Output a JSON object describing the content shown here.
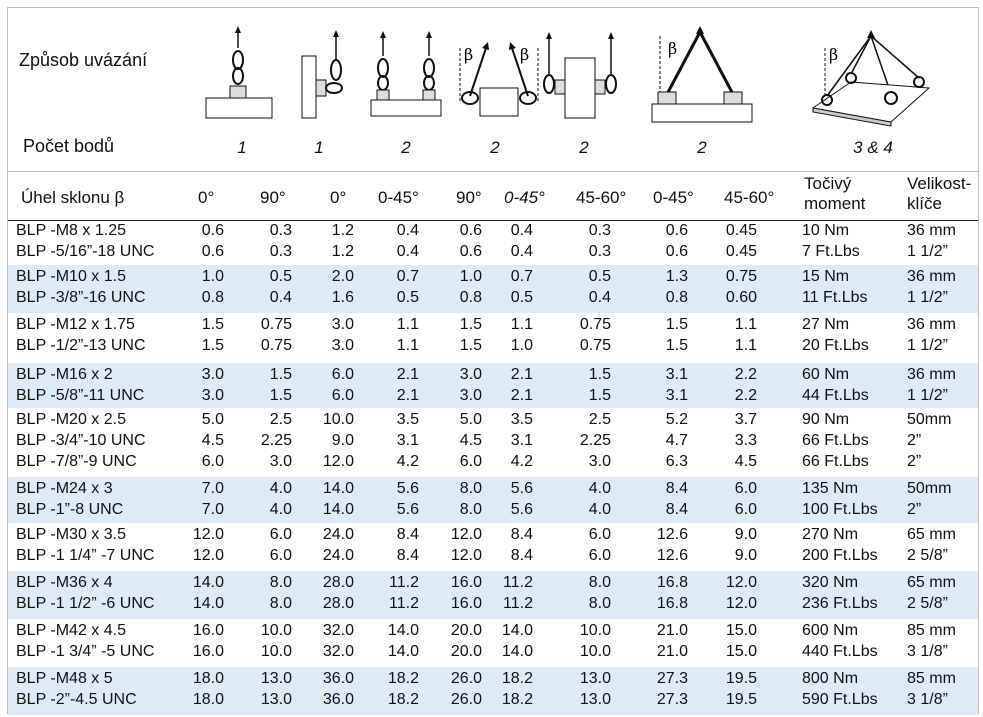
{
  "header": {
    "binding_label": "Způsob uvázání",
    "points_label": "Počet bodů",
    "beta_symbol": "β",
    "diagram_counts": [
      "1",
      "1",
      "2",
      "2",
      "2",
      "2",
      "3 & 4"
    ]
  },
  "angle_header": {
    "label": "Úhel sklonu β",
    "angles": [
      "0°",
      "90°",
      "0°",
      "0-45°",
      "90°",
      "0-45°",
      "45-60°",
      "0-45°",
      "45-60°"
    ],
    "torque_label": [
      "Točivý",
      "moment"
    ],
    "key_label": [
      "Velikost-",
      "klíče"
    ]
  },
  "groups": [
    {
      "shaded": false,
      "rows": [
        [
          "BLP -M8 x 1.25",
          "0.6",
          "0.3",
          "1.2",
          "0.4",
          "0.6",
          "0.4",
          "0.3",
          "0.6",
          "0.45",
          "10 Nm",
          "36 mm"
        ],
        [
          "BLP -5/16”-18 UNC",
          "0.6",
          "0.3",
          "1.2",
          "0.4",
          "0.6",
          "0.4",
          "0.3",
          "0.6",
          "0.45",
          "7 Ft.Lbs",
          "1 1/2”"
        ]
      ]
    },
    {
      "shaded": true,
      "rows": [
        [
          "BLP -M10 x 1.5",
          "1.0",
          "0.5",
          "2.0",
          "0.7",
          "1.0",
          "0.7",
          "0.5",
          "1.3",
          "0.75",
          "15 Nm",
          "36 mm"
        ],
        [
          "BLP -3/8”-16 UNC",
          "0.8",
          "0.4",
          "1.6",
          "0.5",
          "0.8",
          "0.5",
          "0.4",
          "0.8",
          "0.60",
          "11 Ft.Lbs",
          "1 1/2”"
        ]
      ]
    },
    {
      "shaded": false,
      "rows": [
        [
          "BLP -M12 x 1.75",
          "1.5",
          "0.75",
          "3.0",
          "1.1",
          "1.5",
          "1.1",
          "0.75",
          "1.5",
          "1.1",
          "27 Nm",
          "36 mm"
        ],
        [
          "BLP -1/2”-13 UNC",
          "1.5",
          "0.75",
          "3.0",
          "1.1",
          "1.5",
          "1.0",
          "0.75",
          "1.5",
          "1.1",
          "20 Ft.Lbs",
          "1 1/2”"
        ]
      ]
    },
    {
      "shaded": true,
      "rows": [
        [
          "BLP -M16 x 2",
          "3.0",
          "1.5",
          "6.0",
          "2.1",
          "3.0",
          "2.1",
          "1.5",
          "3.1",
          "2.2",
          "60 Nm",
          "36 mm"
        ],
        [
          "BLP -5/8”-11 UNC",
          "3.0",
          "1.5",
          "6.0",
          "2.1",
          "3.0",
          "2.1",
          "1.5",
          "3.1",
          "2.2",
          "44 Ft.Lbs",
          "1 1/2”"
        ]
      ]
    },
    {
      "shaded": false,
      "rows": [
        [
          "BLP -M20 x 2.5",
          "5.0",
          "2.5",
          "10.0",
          "3.5",
          "5.0",
          "3.5",
          "2.5",
          "5.2",
          "3.7",
          "90 Nm",
          "50mm"
        ],
        [
          "BLP -3/4”-10 UNC",
          "4.5",
          "2.25",
          "9.0",
          "3.1",
          "4.5",
          "3.1",
          "2.25",
          "4.7",
          "3.3",
          "66 Ft.Lbs",
          "2”"
        ],
        [
          "BLP -7/8”-9 UNC",
          "6.0",
          "3.0",
          "12.0",
          "4.2",
          "6.0",
          "4.2",
          "3.0",
          "6.3",
          "4.5",
          "66 Ft.Lbs",
          "2”"
        ]
      ]
    },
    {
      "shaded": true,
      "rows": [
        [
          "BLP -M24 x 3",
          "7.0",
          "4.0",
          "14.0",
          "5.6",
          "8.0",
          "5.6",
          "4.0",
          "8.4",
          "6.0",
          "135 Nm",
          "50mm"
        ],
        [
          "BLP -1”-8 UNC",
          "7.0",
          "4.0",
          "14.0",
          "5.6",
          "8.0",
          "5.6",
          "4.0",
          "8.4",
          "6.0",
          "100 Ft.Lbs",
          "2”"
        ]
      ]
    },
    {
      "shaded": false,
      "rows": [
        [
          "BLP -M30 x 3.5",
          "12.0",
          "6.0",
          "24.0",
          "8.4",
          "12.0",
          "8.4",
          "6.0",
          "12.6",
          "9.0",
          "270 Nm",
          "65 mm"
        ],
        [
          "BLP -1 1/4” -7 UNC",
          "12.0",
          "6.0",
          "24.0",
          "8.4",
          "12.0",
          "8.4",
          "6.0",
          "12.6",
          "9.0",
          "200 Ft.Lbs",
          "2 5/8”"
        ]
      ]
    },
    {
      "shaded": true,
      "rows": [
        [
          "BLP -M36 x 4",
          "14.0",
          "8.0",
          "28.0",
          "11.2",
          "16.0",
          "11.2",
          "8.0",
          "16.8",
          "12.0",
          "320 Nm",
          "65 mm"
        ],
        [
          "BLP -1 1/2” -6 UNC",
          "14.0",
          "8.0",
          "28.0",
          "11.2",
          "16.0",
          "11.2",
          "8.0",
          "16.8",
          "12.0",
          "236 Ft.Lbs",
          "2 5/8”"
        ]
      ]
    },
    {
      "shaded": false,
      "rows": [
        [
          "BLP -M42 x 4.5",
          "16.0",
          "10.0",
          "32.0",
          "14.0",
          "20.0",
          "14.0",
          "10.0",
          "21.0",
          "15.0",
          "600 Nm",
          "85 mm"
        ],
        [
          "BLP -1 3/4” -5 UNC",
          "16.0",
          "10.0",
          "32.0",
          "14.0",
          "20.0",
          "14.0",
          "10.0",
          "21.0",
          "15.0",
          "440 Ft.Lbs",
          "3 1/8”"
        ]
      ]
    },
    {
      "shaded": true,
      "rows": [
        [
          "BLP -M48 x 5",
          "18.0",
          "13.0",
          "36.0",
          "18.2",
          "26.0",
          "18.2",
          "13.0",
          "27.3",
          "19.5",
          "800 Nm",
          "85 mm"
        ],
        [
          "BLP -2”-4.5 UNC",
          "18.0",
          "13.0",
          "36.0",
          "18.2",
          "26.0",
          "18.2",
          "13.0",
          "27.3",
          "19.5",
          "590 Ft.Lbs",
          "3 1/8”"
        ]
      ]
    }
  ]
}
